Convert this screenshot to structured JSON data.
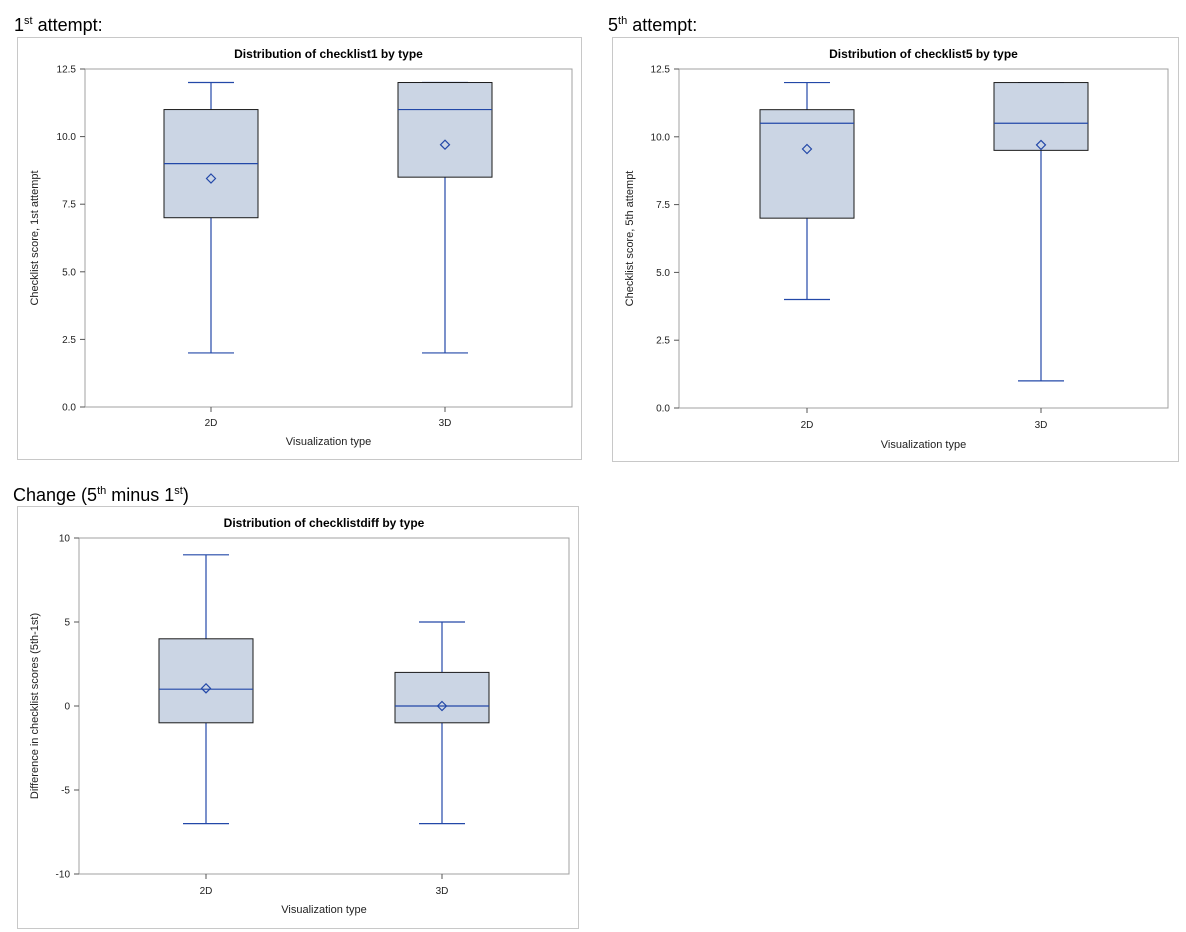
{
  "captions": {
    "first": {
      "prefix": "1",
      "sup": "st",
      "suffix": " attempt:"
    },
    "fifth": {
      "prefix": "5",
      "sup": "th",
      "suffix": " attempt:"
    },
    "change": {
      "a": "Change (5",
      "sup1": "th",
      "b": " minus 1",
      "sup2": "st",
      "c": ")"
    }
  },
  "colors": {
    "box_fill": "#cbd5e4",
    "box_stroke": "#1a1a1a",
    "line": "#2348a8",
    "frame": "#a0a0a0"
  },
  "chart_data": [
    {
      "type": "box",
      "title": "Distribution of checklist1 by type",
      "xlabel": "Visualization type",
      "ylabel": "Checklist score, 1st attempt",
      "ylim": [
        0,
        12.5
      ],
      "yticks": [
        0,
        2.5,
        5,
        7.5,
        10,
        12.5
      ],
      "ytick_labels": [
        "0.0",
        "2.5",
        "5.0",
        "7.5",
        "10.0",
        "12.5"
      ],
      "categories": [
        "2D",
        "3D"
      ],
      "boxes": [
        {
          "min": 2,
          "q1": 7,
          "median": 9,
          "q3": 11,
          "max": 12,
          "mean": 8.45
        },
        {
          "min": 2,
          "q1": 8.5,
          "median": 11,
          "q3": 12,
          "max": 12,
          "mean": 9.7
        }
      ]
    },
    {
      "type": "box",
      "title": "Distribution of checklist5 by type",
      "xlabel": "Visualization type",
      "ylabel": "Checklist score, 5th attempt",
      "ylim": [
        0,
        12.5
      ],
      "yticks": [
        0,
        2.5,
        5,
        7.5,
        10,
        12.5
      ],
      "ytick_labels": [
        "0.0",
        "2.5",
        "5.0",
        "7.5",
        "10.0",
        "12.5"
      ],
      "categories": [
        "2D",
        "3D"
      ],
      "boxes": [
        {
          "min": 4,
          "q1": 7,
          "median": 10.5,
          "q3": 11,
          "max": 12,
          "mean": 9.55
        },
        {
          "min": 1,
          "q1": 9.5,
          "median": 10.5,
          "q3": 12,
          "max": 12,
          "mean": 9.7
        }
      ]
    },
    {
      "type": "box",
      "title": "Distribution of checklistdiff by type",
      "xlabel": "Visualization type",
      "ylabel": "Difference in checklist scores (5th-1st)",
      "ylim": [
        -10,
        10
      ],
      "yticks": [
        -10,
        -5,
        0,
        5,
        10
      ],
      "ytick_labels": [
        "-10",
        "-5",
        "0",
        "5",
        "10"
      ],
      "categories": [
        "2D",
        "3D"
      ],
      "boxes": [
        {
          "min": -7,
          "q1": -1,
          "median": 1,
          "q3": 4,
          "max": 9,
          "mean": 1.05
        },
        {
          "min": -7,
          "q1": -1,
          "median": 0,
          "q3": 2,
          "max": 5,
          "mean": 0
        }
      ]
    }
  ]
}
